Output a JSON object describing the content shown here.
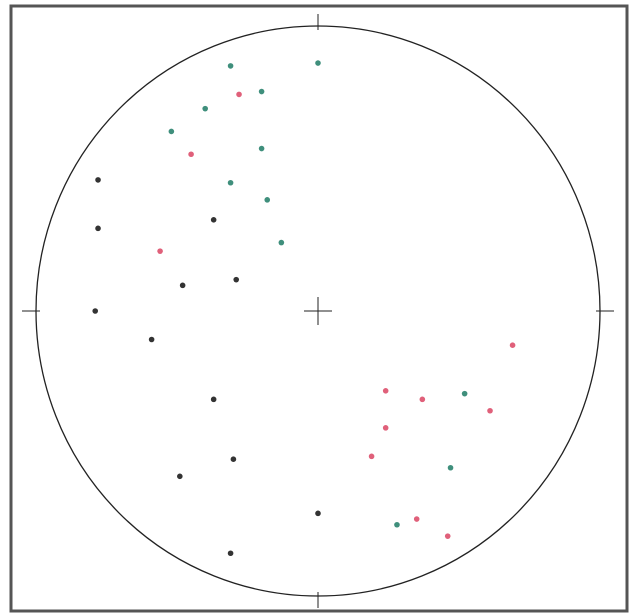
{
  "chart_data": {
    "type": "scatter",
    "xlim": [
      -1,
      1
    ],
    "ylim": [
      -1,
      1
    ],
    "series": [
      {
        "color": "#3f8f7c",
        "x": [
          -0.31,
          0.0,
          -0.2,
          -0.4,
          -0.52,
          -0.2,
          -0.31,
          -0.18,
          -0.13,
          0.52,
          0.47,
          0.28
        ],
        "y": [
          0.86,
          0.87,
          0.77,
          0.71,
          0.63,
          0.57,
          0.45,
          0.39,
          0.24,
          -0.29,
          -0.55,
          -0.75
        ]
      },
      {
        "color": "#e0607a",
        "x": [
          -0.28,
          -0.45,
          -0.56,
          0.69,
          0.24,
          0.37,
          0.61,
          0.24,
          0.19,
          0.35,
          0.46
        ],
        "y": [
          0.76,
          0.55,
          0.21,
          -0.12,
          -0.28,
          -0.31,
          -0.35,
          -0.41,
          -0.51,
          -0.73,
          -0.79
        ]
      },
      {
        "color": "#333333",
        "x": [
          -0.78,
          -0.78,
          -0.37,
          -0.29,
          -0.48,
          -0.79,
          -0.59,
          -0.37,
          -0.3,
          -0.49,
          0.0,
          -0.31
        ],
        "y": [
          0.46,
          0.29,
          0.32,
          0.11,
          0.09,
          0.0,
          -0.1,
          -0.31,
          -0.52,
          -0.58,
          -0.71,
          -0.85
        ]
      }
    ]
  }
}
